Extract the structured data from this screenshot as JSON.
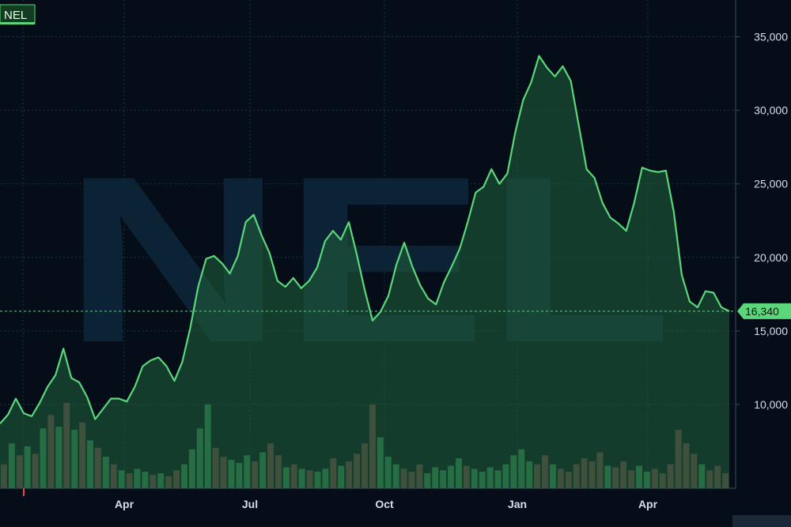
{
  "symbol_badge": "NEL",
  "watermark": "NEL",
  "colors": {
    "background": "#040d18",
    "grid": "#1e3346",
    "price_line": "#5cd67a",
    "price_fill": "#1f5a3a",
    "volume_up": "#3fa55c",
    "volume_down": "#8a4a46",
    "last_price_badge": "#5cd67a"
  },
  "chart_data": {
    "type": "area",
    "title": "",
    "xlabel": "",
    "ylabel": "",
    "x_ticks": [
      "Apr",
      "Jul",
      "Oct",
      "Jan",
      "Apr"
    ],
    "y_ticks": [
      "35,000",
      "30,000",
      "25,000",
      "20,000",
      "15,000",
      "10,000"
    ],
    "y_tick_values": [
      35000,
      30000,
      25000,
      20000,
      15000,
      10000
    ],
    "ylim": [
      4300,
      37500
    ],
    "grid": true,
    "last_price": 16340,
    "last_price_label": "16,340",
    "series": [
      {
        "values": [
          8700,
          9300,
          10400,
          9400,
          9200,
          10100,
          11200,
          12000,
          13800,
          11800,
          11500,
          10500,
          9000,
          9700,
          10400,
          10400,
          10200,
          11200,
          12600,
          13000,
          13200,
          12600,
          11600,
          12900,
          15200,
          18000,
          19900,
          20100,
          19600,
          18900,
          20100,
          22400,
          22900,
          21500,
          20300,
          18400,
          18000,
          18600,
          17900,
          18400,
          19300,
          21100,
          21800,
          21200,
          22400,
          20200,
          17800,
          15700,
          16300,
          17400,
          19500,
          21000,
          19400,
          18100,
          17200,
          16800,
          18300,
          19400,
          20600,
          22400,
          24400,
          24800,
          26000,
          25000,
          25700,
          28500,
          30700,
          31900,
          33700,
          32900,
          32300,
          33000,
          32000,
          29000,
          26000,
          25400,
          23700,
          22700,
          22300,
          21800,
          23700,
          26100,
          25900,
          25800,
          25900,
          23100,
          18800,
          17000,
          16600,
          17700,
          17600,
          16600,
          16340
        ]
      }
    ],
    "volume": [
      {
        "value": 1.6,
        "up": false
      },
      {
        "value": 3.0,
        "up": true
      },
      {
        "value": 2.2,
        "up": false
      },
      {
        "value": 2.8,
        "up": true
      },
      {
        "value": 2.3,
        "up": false
      },
      {
        "value": 4.0,
        "up": true
      },
      {
        "value": 4.9,
        "up": false
      },
      {
        "value": 4.1,
        "up": true
      },
      {
        "value": 5.7,
        "up": false
      },
      {
        "value": 3.9,
        "up": true
      },
      {
        "value": 4.4,
        "up": false
      },
      {
        "value": 3.2,
        "up": true
      },
      {
        "value": 2.7,
        "up": false
      },
      {
        "value": 2.1,
        "up": true
      },
      {
        "value": 1.6,
        "up": false
      },
      {
        "value": 1.2,
        "up": true
      },
      {
        "value": 1.0,
        "up": false
      },
      {
        "value": 1.3,
        "up": true
      },
      {
        "value": 1.1,
        "up": true
      },
      {
        "value": 0.9,
        "up": false
      },
      {
        "value": 1.0,
        "up": true
      },
      {
        "value": 0.8,
        "up": false
      },
      {
        "value": 1.2,
        "up": false
      },
      {
        "value": 1.6,
        "up": true
      },
      {
        "value": 2.6,
        "up": true
      },
      {
        "value": 4.0,
        "up": true
      },
      {
        "value": 5.6,
        "up": true
      },
      {
        "value": 2.7,
        "up": false
      },
      {
        "value": 2.1,
        "up": false
      },
      {
        "value": 1.9,
        "up": true
      },
      {
        "value": 1.7,
        "up": true
      },
      {
        "value": 2.2,
        "up": true
      },
      {
        "value": 1.8,
        "up": false
      },
      {
        "value": 2.4,
        "up": true
      },
      {
        "value": 3.0,
        "up": false
      },
      {
        "value": 2.2,
        "up": false
      },
      {
        "value": 1.4,
        "up": true
      },
      {
        "value": 1.6,
        "up": false
      },
      {
        "value": 1.3,
        "up": true
      },
      {
        "value": 1.2,
        "up": false
      },
      {
        "value": 1.1,
        "up": true
      },
      {
        "value": 1.3,
        "up": true
      },
      {
        "value": 2.0,
        "up": false
      },
      {
        "value": 1.5,
        "up": true
      },
      {
        "value": 1.8,
        "up": false
      },
      {
        "value": 2.3,
        "up": false
      },
      {
        "value": 3.0,
        "up": false
      },
      {
        "value": 5.6,
        "up": false
      },
      {
        "value": 3.4,
        "up": true
      },
      {
        "value": 2.1,
        "up": true
      },
      {
        "value": 1.6,
        "up": true
      },
      {
        "value": 1.3,
        "up": false
      },
      {
        "value": 1.1,
        "up": false
      },
      {
        "value": 1.6,
        "up": false
      },
      {
        "value": 1.0,
        "up": true
      },
      {
        "value": 1.4,
        "up": true
      },
      {
        "value": 1.2,
        "up": true
      },
      {
        "value": 1.5,
        "up": true
      },
      {
        "value": 2.0,
        "up": true
      },
      {
        "value": 1.5,
        "up": false
      },
      {
        "value": 1.3,
        "up": true
      },
      {
        "value": 1.1,
        "up": true
      },
      {
        "value": 1.4,
        "up": true
      },
      {
        "value": 1.2,
        "up": true
      },
      {
        "value": 1.6,
        "up": true
      },
      {
        "value": 2.2,
        "up": true
      },
      {
        "value": 2.6,
        "up": true
      },
      {
        "value": 1.8,
        "up": true
      },
      {
        "value": 1.6,
        "up": false
      },
      {
        "value": 2.2,
        "up": false
      },
      {
        "value": 1.6,
        "up": true
      },
      {
        "value": 1.3,
        "up": false
      },
      {
        "value": 1.1,
        "up": false
      },
      {
        "value": 1.6,
        "up": false
      },
      {
        "value": 2.0,
        "up": false
      },
      {
        "value": 1.8,
        "up": false
      },
      {
        "value": 2.4,
        "up": false
      },
      {
        "value": 1.5,
        "up": true
      },
      {
        "value": 1.4,
        "up": false
      },
      {
        "value": 1.8,
        "up": false
      },
      {
        "value": 1.2,
        "up": false
      },
      {
        "value": 1.5,
        "up": true
      },
      {
        "value": 1.1,
        "up": true
      },
      {
        "value": 1.3,
        "up": false
      },
      {
        "value": 1.0,
        "up": false
      },
      {
        "value": 1.6,
        "up": false
      },
      {
        "value": 3.9,
        "up": false
      },
      {
        "value": 3.0,
        "up": false
      },
      {
        "value": 2.3,
        "up": false
      },
      {
        "value": 1.6,
        "up": true
      },
      {
        "value": 1.2,
        "up": false
      },
      {
        "value": 1.5,
        "up": false
      },
      {
        "value": 1.0,
        "up": false
      }
    ]
  }
}
